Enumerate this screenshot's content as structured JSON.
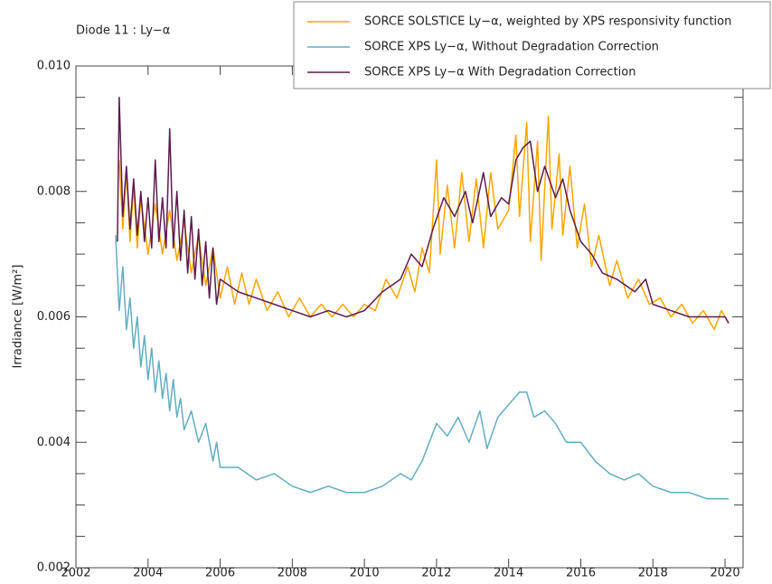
{
  "chart_data": {
    "type": "line",
    "title": "Diode 11 : Ly−α",
    "y_label": "Irradiance [W/m²]",
    "xlim": [
      2002,
      2020.5
    ],
    "xticks": [
      2002,
      2004,
      2006,
      2008,
      2010,
      2012,
      2014,
      2016,
      2018,
      2020
    ],
    "ylim": [
      0.002,
      0.01
    ],
    "yticks": [
      0.002,
      0.004,
      0.006,
      0.008,
      {
        "value": 0.01,
        "label": "0.010"
      }
    ],
    "yticks_minor": [
      0.0025,
      0.003,
      0.0035,
      0.0045,
      0.005,
      0.0055,
      0.0065,
      0.007,
      0.0075,
      0.0085,
      0.009,
      0.0095
    ],
    "legend": "upper right",
    "series": [
      {
        "name": "SORCE SOLSTICE Ly−α, weighted by XPS responsivity function",
        "color": "#ffa500",
        "x": [
          2003.2,
          2003.3,
          2003.4,
          2003.5,
          2003.6,
          2003.7,
          2003.8,
          2004.0,
          2004.2,
          2004.4,
          2004.6,
          2004.8,
          2005.0,
          2005.2,
          2005.4,
          2005.6,
          2005.8,
          2006.0,
          2006.2,
          2006.4,
          2006.6,
          2006.8,
          2007.0,
          2007.3,
          2007.6,
          2007.9,
          2008.2,
          2008.5,
          2008.8,
          2009.1,
          2009.4,
          2009.7,
          2010.0,
          2010.3,
          2010.6,
          2010.9,
          2011.2,
          2011.4,
          2011.6,
          2011.8,
          2012.0,
          2012.1,
          2012.3,
          2012.5,
          2012.7,
          2012.9,
          2013.1,
          2013.3,
          2013.5,
          2013.7,
          2014.0,
          2014.2,
          2014.3,
          2014.5,
          2014.6,
          2014.8,
          2014.9,
          2015.1,
          2015.2,
          2015.4,
          2015.5,
          2015.7,
          2015.9,
          2016.1,
          2016.3,
          2016.5,
          2016.8,
          2017.0,
          2017.3,
          2017.6,
          2017.9,
          2018.2,
          2018.5,
          2018.8,
          2019.1,
          2019.4,
          2019.7,
          2019.9,
          2020.1
        ],
        "values": [
          0.0085,
          0.0074,
          0.0083,
          0.0072,
          0.0081,
          0.0071,
          0.0079,
          0.007,
          0.0078,
          0.007,
          0.0077,
          0.0069,
          0.0075,
          0.0067,
          0.0073,
          0.0065,
          0.0071,
          0.0063,
          0.0068,
          0.0062,
          0.0067,
          0.0062,
          0.0066,
          0.0061,
          0.0064,
          0.006,
          0.0063,
          0.006,
          0.0062,
          0.006,
          0.0062,
          0.006,
          0.0062,
          0.0061,
          0.0066,
          0.0063,
          0.0068,
          0.0064,
          0.0071,
          0.0067,
          0.0085,
          0.007,
          0.0081,
          0.0071,
          0.0083,
          0.0072,
          0.0082,
          0.0071,
          0.0083,
          0.0074,
          0.0077,
          0.0089,
          0.0076,
          0.0091,
          0.0072,
          0.0088,
          0.0069,
          0.0092,
          0.0074,
          0.0086,
          0.0073,
          0.0084,
          0.0071,
          0.0078,
          0.0068,
          0.0073,
          0.0065,
          0.0069,
          0.0063,
          0.0066,
          0.0062,
          0.0063,
          0.006,
          0.0062,
          0.0059,
          0.0061,
          0.0058,
          0.0061,
          0.0059
        ]
      },
      {
        "name": "SORCE XPS Ly−α, Without Degradation Correction",
        "color": "#62adc4",
        "x": [
          2003.1,
          2003.2,
          2003.3,
          2003.4,
          2003.5,
          2003.6,
          2003.7,
          2003.8,
          2003.9,
          2004.0,
          2004.1,
          2004.2,
          2004.3,
          2004.4,
          2004.5,
          2004.6,
          2004.7,
          2004.8,
          2004.9,
          2005.0,
          2005.2,
          2005.4,
          2005.6,
          2005.8,
          2005.9,
          2006.0,
          2006.5,
          2007.0,
          2007.5,
          2008.0,
          2008.5,
          2009.0,
          2009.5,
          2010.0,
          2010.5,
          2011.0,
          2011.3,
          2011.6,
          2012.0,
          2012.3,
          2012.6,
          2012.9,
          2013.2,
          2013.4,
          2013.7,
          2014.0,
          2014.3,
          2014.5,
          2014.7,
          2015.0,
          2015.3,
          2015.6,
          2016.0,
          2016.4,
          2016.8,
          2017.2,
          2017.6,
          2018.0,
          2018.5,
          2019.0,
          2019.5,
          2020.0,
          2020.1
        ],
        "values": [
          0.0073,
          0.0061,
          0.0068,
          0.0058,
          0.0063,
          0.0055,
          0.006,
          0.0052,
          0.0057,
          0.005,
          0.0055,
          0.0048,
          0.0053,
          0.0047,
          0.0051,
          0.0045,
          0.005,
          0.0044,
          0.0047,
          0.0042,
          0.0045,
          0.004,
          0.0043,
          0.0037,
          0.004,
          0.0036,
          0.0036,
          0.0034,
          0.0035,
          0.0033,
          0.0032,
          0.0033,
          0.0032,
          0.0032,
          0.0033,
          0.0035,
          0.0034,
          0.0037,
          0.0043,
          0.0041,
          0.0044,
          0.004,
          0.0045,
          0.0039,
          0.0044,
          0.0046,
          0.0048,
          0.0048,
          0.0044,
          0.0045,
          0.0043,
          0.004,
          0.004,
          0.0037,
          0.0035,
          0.0034,
          0.0035,
          0.0033,
          0.0032,
          0.0032,
          0.0031,
          0.0031,
          0.0031
        ]
      },
      {
        "name": "SORCE XPS Ly−α With Degradation Correction",
        "color": "#5c1a4e",
        "x": [
          2003.15,
          2003.2,
          2003.3,
          2003.4,
          2003.5,
          2003.6,
          2003.7,
          2003.8,
          2003.9,
          2004.0,
          2004.1,
          2004.2,
          2004.3,
          2004.4,
          2004.5,
          2004.6,
          2004.7,
          2004.8,
          2004.9,
          2005.0,
          2005.1,
          2005.2,
          2005.3,
          2005.4,
          2005.5,
          2005.6,
          2005.7,
          2005.8,
          2005.9,
          2006.0,
          2006.5,
          2007.0,
          2007.5,
          2008.0,
          2008.5,
          2009.0,
          2009.5,
          2010.0,
          2010.5,
          2011.0,
          2011.3,
          2011.6,
          2011.9,
          2012.2,
          2012.5,
          2012.8,
          2013.0,
          2013.3,
          2013.5,
          2013.8,
          2014.0,
          2014.2,
          2014.4,
          2014.6,
          2014.8,
          2015.0,
          2015.3,
          2015.5,
          2015.7,
          2016.0,
          2016.3,
          2016.6,
          2017.0,
          2017.5,
          2017.8,
          2018.0,
          2018.5,
          2019.0,
          2019.5,
          2020.0,
          2020.1
        ],
        "values": [
          0.0072,
          0.0095,
          0.0076,
          0.0084,
          0.0074,
          0.0082,
          0.0073,
          0.008,
          0.0072,
          0.0079,
          0.0071,
          0.0085,
          0.0072,
          0.0079,
          0.0071,
          0.009,
          0.0071,
          0.008,
          0.0069,
          0.0077,
          0.0067,
          0.0076,
          0.0066,
          0.0074,
          0.0065,
          0.0072,
          0.0063,
          0.0071,
          0.0062,
          0.0066,
          0.0064,
          0.0063,
          0.0062,
          0.0061,
          0.006,
          0.0061,
          0.006,
          0.0061,
          0.0064,
          0.0066,
          0.007,
          0.0068,
          0.0074,
          0.0079,
          0.0076,
          0.008,
          0.0075,
          0.0083,
          0.0076,
          0.0079,
          0.0078,
          0.0085,
          0.0087,
          0.0088,
          0.008,
          0.0084,
          0.0079,
          0.0082,
          0.0077,
          0.0072,
          0.007,
          0.0067,
          0.0066,
          0.0064,
          0.0066,
          0.0062,
          0.0061,
          0.006,
          0.006,
          0.006,
          0.0059
        ]
      }
    ]
  }
}
